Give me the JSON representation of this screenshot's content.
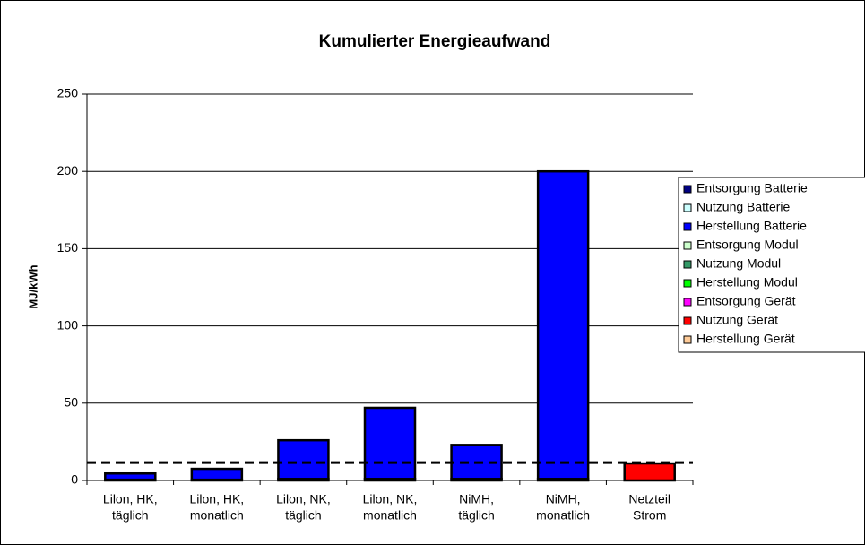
{
  "chart_data": {
    "type": "stacked_bar",
    "title": "Kumulierter Energieaufwand",
    "y_label": "MJ/kWh",
    "categories": [
      [
        "Lilon, HK,",
        "täglich"
      ],
      [
        "Lilon, HK,",
        "monatlich"
      ],
      [
        "Lilon, NK,",
        "täglich"
      ],
      [
        "Lilon, NK,",
        "monatlich"
      ],
      [
        "NiMH,",
        "täglich"
      ],
      [
        "NiMH,",
        "monatlich"
      ],
      [
        "Netzteil",
        "Strom"
      ]
    ],
    "series": [
      {
        "name": "Entsorgung Batterie",
        "color": "#000080",
        "values": [
          0.5,
          0.5,
          1,
          1,
          1,
          1,
          0
        ]
      },
      {
        "name": "Nutzung Batterie",
        "color": "#ccffff",
        "values": [
          0,
          0,
          0,
          0,
          0,
          0,
          0
        ]
      },
      {
        "name": "Herstellung Batterie",
        "color": "#0000ff",
        "values": [
          4,
          7,
          25,
          46,
          22,
          199,
          0
        ]
      },
      {
        "name": "Entsorgung Modul",
        "color": "#ccffcc",
        "values": [
          0,
          0,
          0,
          0,
          0,
          0,
          0
        ]
      },
      {
        "name": "Nutzung Modul",
        "color": "#339966",
        "values": [
          0,
          0,
          0,
          0,
          0,
          0,
          0
        ]
      },
      {
        "name": "Herstellung Modul",
        "color": "#00ff00",
        "values": [
          0,
          0,
          0,
          0,
          0,
          0,
          0
        ]
      },
      {
        "name": "Entsorgung Gerät",
        "color": "#ff00ff",
        "values": [
          0,
          0,
          0,
          0,
          0,
          0,
          0
        ]
      },
      {
        "name": "Nutzung Gerät",
        "color": "#ff0000",
        "values": [
          0,
          0,
          0,
          0,
          0,
          0,
          11
        ]
      },
      {
        "name": "Herstellung Gerät",
        "color": "#ffcc99",
        "values": [
          0,
          0,
          0,
          0,
          0,
          0,
          0
        ]
      }
    ],
    "reference_line": 11.5,
    "ylim": [
      0,
      250
    ],
    "yticks": [
      0,
      50,
      100,
      150,
      200,
      250
    ],
    "grid": true,
    "legend": "right"
  }
}
